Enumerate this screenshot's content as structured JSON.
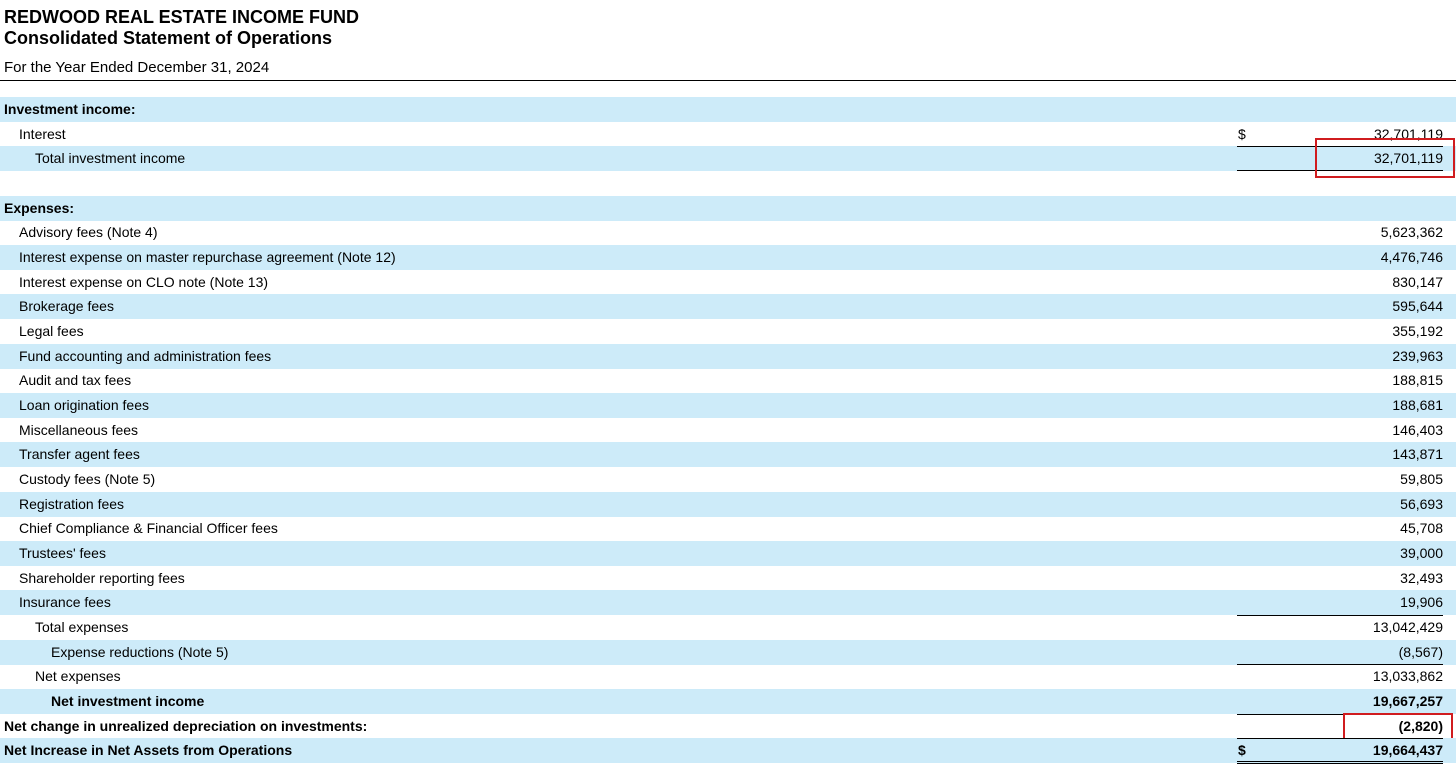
{
  "header": {
    "title": "REDWOOD REAL ESTATE INCOME FUND",
    "subtitle": "Consolidated Statement of Operations",
    "period": "For the Year Ended December 31, 2024"
  },
  "sections": [
    {
      "heading": "Investment income:",
      "rows": [
        {
          "label": "Interest",
          "currency": "$",
          "amount": "32,701,119"
        },
        {
          "label": "Total investment income",
          "amount": "32,701,119"
        }
      ]
    },
    {
      "heading": "Expenses:",
      "rows": [
        {
          "label": "Advisory fees (Note 4)",
          "amount": "5,623,362"
        },
        {
          "label": "Interest expense on master repurchase agreement (Note 12)",
          "amount": "4,476,746"
        },
        {
          "label": "Interest expense on CLO note (Note 13)",
          "amount": "830,147"
        },
        {
          "label": "Brokerage fees",
          "amount": "595,644"
        },
        {
          "label": "Legal fees",
          "amount": "355,192"
        },
        {
          "label": "Fund accounting and administration fees",
          "amount": "239,963"
        },
        {
          "label": "Audit and tax fees",
          "amount": "188,815"
        },
        {
          "label": "Loan origination fees",
          "amount": "188,681"
        },
        {
          "label": "Miscellaneous fees",
          "amount": "146,403"
        },
        {
          "label": "Transfer agent fees",
          "amount": "143,871"
        },
        {
          "label": "Custody fees (Note 5)",
          "amount": "59,805"
        },
        {
          "label": "Registration fees",
          "amount": "56,693"
        },
        {
          "label": "Chief Compliance & Financial Officer fees",
          "amount": "45,708"
        },
        {
          "label": "Trustees' fees",
          "amount": "39,000"
        },
        {
          "label": "Shareholder reporting fees",
          "amount": "32,493"
        },
        {
          "label": "Insurance fees",
          "amount": "19,906"
        },
        {
          "label": "Total expenses",
          "amount": "13,042,429"
        },
        {
          "label": "Expense reductions (Note 5)",
          "amount": "(8,567)"
        },
        {
          "label": "Net expenses",
          "amount": "13,033,862"
        },
        {
          "label": "Net investment income",
          "amount": "19,667,257"
        },
        {
          "label": "Net change in unrealized depreciation on investments:",
          "amount": "(2,820)"
        },
        {
          "label": "Net Increase in Net Assets from Operations",
          "currency": "$",
          "amount": "19,664,437"
        }
      ]
    }
  ]
}
